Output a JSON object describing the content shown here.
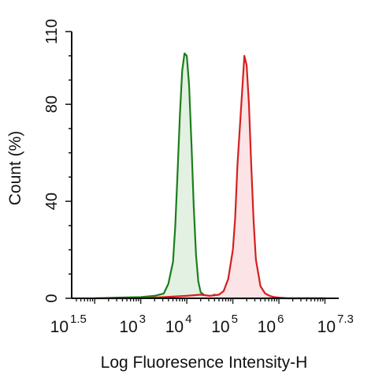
{
  "chart_data": {
    "type": "area",
    "title": "",
    "xlabel": "Log Fluoresence Intensity-H",
    "ylabel": "Count  (%)",
    "x_scale": "log",
    "xlim": [
      1.5,
      7.3
    ],
    "ylim": [
      0,
      110
    ],
    "y_ticks": [
      "0",
      "40",
      "80",
      "110"
    ],
    "x_ticks": [
      {
        "base": "10",
        "exp": "1.5",
        "value": 1.5
      },
      {
        "base": "10",
        "exp": "3",
        "value": 3
      },
      {
        "base": "10",
        "exp": "4",
        "value": 4
      },
      {
        "base": "10",
        "exp": "5",
        "value": 5
      },
      {
        "base": "10",
        "exp": "6",
        "value": 6
      },
      {
        "base": "10",
        "exp": "7.3",
        "value": 7.3
      }
    ],
    "grid": false,
    "legend": "none",
    "series": [
      {
        "color": "#1a7f1a",
        "fill": "#e3f1e3",
        "x": [
          2.0,
          2.5,
          3.0,
          3.3,
          3.5,
          3.6,
          3.7,
          3.75,
          3.8,
          3.85,
          3.9,
          3.95,
          4.0,
          4.05,
          4.1,
          4.15,
          4.2,
          4.25,
          4.3,
          4.4,
          4.5,
          4.6,
          4.7,
          4.8,
          5.0,
          5.5,
          6.0,
          6.5,
          7.0
        ],
        "values": [
          0,
          0.3,
          0.5,
          1,
          2,
          6,
          15,
          30,
          52,
          76,
          94,
          101,
          100,
          88,
          64,
          38,
          18,
          7,
          2.5,
          1,
          0.5,
          1.5,
          0.5,
          0,
          0,
          0,
          0,
          0,
          0
        ]
      },
      {
        "color": "#d42020",
        "fill": "#fbe3e6",
        "x": [
          2.0,
          3.0,
          3.5,
          4.0,
          4.3,
          4.5,
          4.7,
          4.8,
          4.9,
          5.0,
          5.05,
          5.1,
          5.2,
          5.25,
          5.3,
          5.35,
          5.4,
          5.45,
          5.5,
          5.6,
          5.7,
          5.8,
          5.9,
          6.0,
          6.2,
          6.5,
          7.0
        ],
        "values": [
          0,
          0,
          0.5,
          1,
          1.5,
          1,
          1.5,
          3,
          8,
          20,
          33,
          55,
          85,
          100,
          96,
          80,
          55,
          32,
          16,
          5,
          2,
          1,
          0.5,
          0.3,
          0,
          0,
          0
        ]
      }
    ]
  }
}
